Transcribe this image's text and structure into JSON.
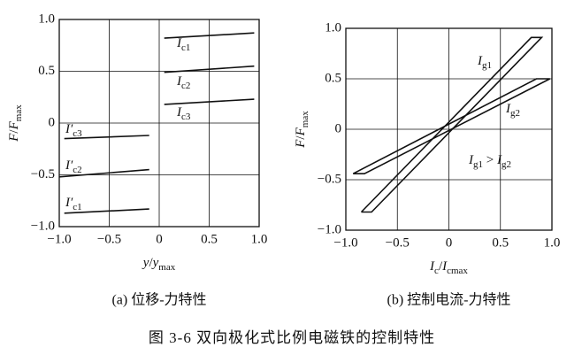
{
  "chart_data": [
    {
      "type": "line",
      "xlabel": [
        {
          "text": "y",
          "italic": true
        },
        {
          "text": "/"
        },
        {
          "text": "y",
          "italic": true
        },
        {
          "text": "max",
          "sub": true
        }
      ],
      "ylabel": [
        {
          "text": "F",
          "italic": true
        },
        {
          "text": "/"
        },
        {
          "text": "F",
          "italic": true
        },
        {
          "text": "max",
          "sub": true
        }
      ],
      "caption": "(a) 位移-力特性",
      "xlim": [
        -1.0,
        1.0
      ],
      "ylim": [
        -1.0,
        1.0
      ],
      "xticks": [
        {
          "value": -1.0,
          "label": "−1.0"
        },
        {
          "value": -0.5,
          "label": "−0.5"
        },
        0,
        0.5,
        {
          "value": 1.0,
          "label": "1.0"
        }
      ],
      "yticks": [
        {
          "value": 1.0,
          "label": "1.0"
        },
        0.5,
        0,
        {
          "value": -0.5,
          "label": "−0.5"
        },
        {
          "value": -1.0,
          "label": "−1.0"
        }
      ],
      "grid": true,
      "series": [
        {
          "name": [
            {
              "text": "I",
              "italic": true
            },
            {
              "text": "c1",
              "sub": true
            }
          ],
          "color": "#111",
          "x": [
            0.05,
            0.95
          ],
          "values": [
            0.82,
            0.87
          ]
        },
        {
          "name": [
            {
              "text": "I",
              "italic": true
            },
            {
              "text": "c2",
              "sub": true
            }
          ],
          "color": "#111",
          "x": [
            0.05,
            0.95
          ],
          "values": [
            0.49,
            0.55
          ]
        },
        {
          "name": [
            {
              "text": "I",
              "italic": true
            },
            {
              "text": "c3",
              "sub": true
            }
          ],
          "color": "#111",
          "x": [
            0.05,
            0.95
          ],
          "values": [
            0.18,
            0.23
          ]
        },
        {
          "name": [
            {
              "text": "I′",
              "italic": true
            },
            {
              "text": "c3",
              "sub": true
            }
          ],
          "color": "#111",
          "x": [
            -0.95,
            -0.1
          ],
          "values": [
            -0.15,
            -0.12
          ]
        },
        {
          "name": [
            {
              "text": "I′",
              "italic": true
            },
            {
              "text": "c2",
              "sub": true
            }
          ],
          "color": "#111",
          "x": [
            -1.0,
            -0.1
          ],
          "values": [
            -0.52,
            -0.45
          ]
        },
        {
          "name": [
            {
              "text": "I′",
              "italic": true
            },
            {
              "text": "c1",
              "sub": true
            }
          ],
          "color": "#111",
          "x": [
            -0.95,
            -0.1
          ],
          "values": [
            -0.87,
            -0.83
          ]
        }
      ]
    },
    {
      "type": "line",
      "xlabel": [
        {
          "text": "I",
          "italic": true
        },
        {
          "text": "c",
          "sub": true
        },
        {
          "text": "/"
        },
        {
          "text": "I",
          "italic": true
        },
        {
          "text": "cmax",
          "sub": true
        }
      ],
      "ylabel": [
        {
          "text": "F",
          "italic": true
        },
        {
          "text": "/"
        },
        {
          "text": "F",
          "italic": true
        },
        {
          "text": "max",
          "sub": true
        }
      ],
      "caption": "(b) 控制电流-力特性",
      "xlim": [
        -1.0,
        1.0
      ],
      "ylim": [
        -1.0,
        1.0
      ],
      "xticks": [
        {
          "value": -1.0,
          "label": "−1.0"
        },
        {
          "value": -0.5,
          "label": "−0.5"
        },
        0,
        0.5,
        {
          "value": 1.0,
          "label": "1.0"
        }
      ],
      "yticks": [
        {
          "value": 1.0,
          "label": "1.0"
        },
        0.5,
        0,
        {
          "value": -0.5,
          "label": "−0.5"
        },
        {
          "value": -1.0,
          "label": "−1.0"
        }
      ],
      "grid": true,
      "series": [
        {
          "name": [
            {
              "text": "I",
              "italic": true
            },
            {
              "text": "g1",
              "sub": true
            }
          ],
          "color": "#111",
          "x": [
            -0.85,
            0.8,
            0.9,
            -0.75,
            -0.85
          ],
          "values": [
            -0.82,
            0.91,
            0.91,
            -0.82,
            -0.82
          ]
        },
        {
          "name": [
            {
              "text": "I",
              "italic": true
            },
            {
              "text": "g2",
              "sub": true
            }
          ],
          "color": "#111",
          "x": [
            -0.93,
            0.85,
            0.98,
            -0.82,
            -0.93
          ],
          "values": [
            -0.44,
            0.5,
            0.5,
            -0.44,
            -0.44
          ]
        }
      ],
      "annotation": [
        {
          "text": "I",
          "italic": true
        },
        {
          "text": "g1",
          "sub": true
        },
        {
          "text": " > "
        },
        {
          "text": "I",
          "italic": true
        },
        {
          "text": "g2",
          "sub": true
        }
      ]
    }
  ],
  "figure_caption": "图 3-6   双向极化式比例电磁铁的控制特性"
}
